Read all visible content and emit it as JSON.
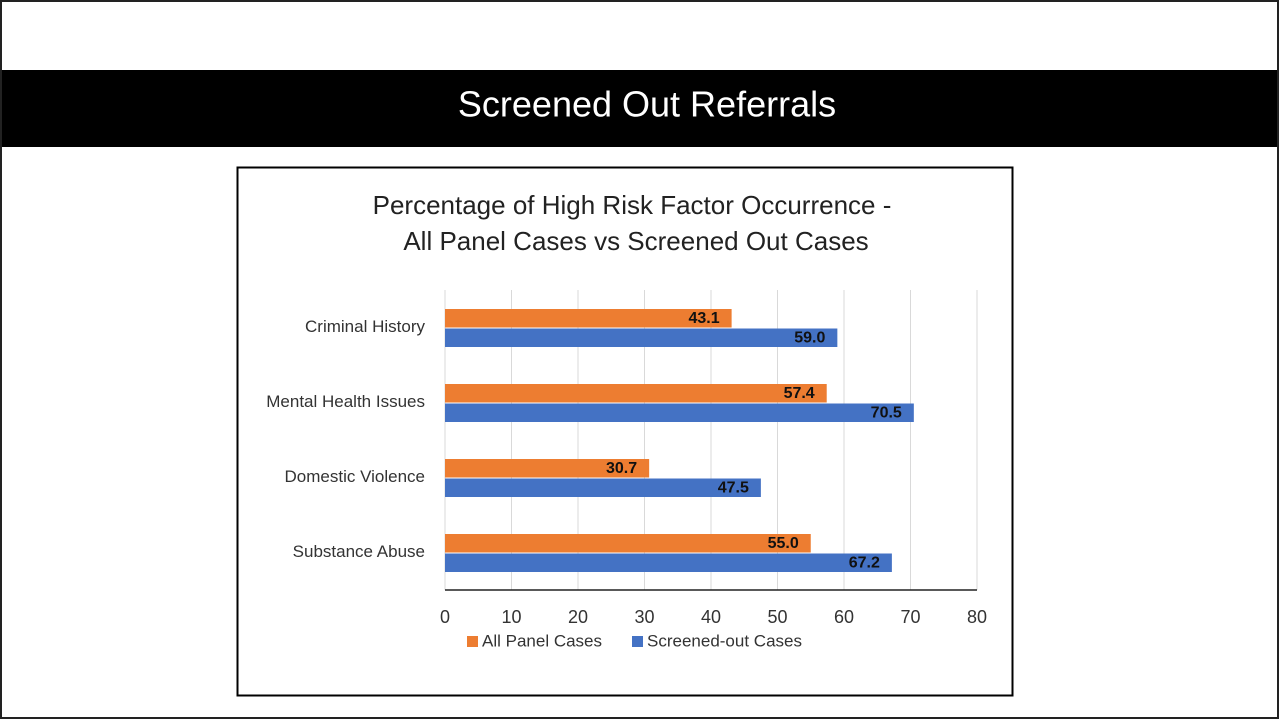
{
  "slide_title": "Screened Out Referrals",
  "chart_data": {
    "type": "hbar",
    "title": [
      "Percentage of High Risk Factor Occurrence -",
      "All Panel Cases vs Screened Out Cases"
    ],
    "categories": [
      "Criminal History",
      "Mental Health Issues",
      "Domestic Violence",
      "Substance Abuse"
    ],
    "series": [
      {
        "name": "All Panel Cases",
        "color": "#ed7d31",
        "values": [
          43.1,
          57.4,
          30.7,
          55.0
        ],
        "value_labels": [
          "43.1",
          "57.4",
          "30.7",
          "55.0"
        ]
      },
      {
        "name": "Screened-out Cases",
        "color": "#4472c4",
        "values": [
          59.0,
          70.5,
          47.5,
          67.2
        ],
        "value_labels": [
          "59.0",
          "70.5",
          "47.5",
          "67.2"
        ]
      }
    ],
    "xlim": [
      0,
      80
    ],
    "xticks": [
      0,
      10,
      20,
      30,
      40,
      50,
      60,
      70,
      80
    ],
    "grid": true,
    "legend": "bottom"
  }
}
